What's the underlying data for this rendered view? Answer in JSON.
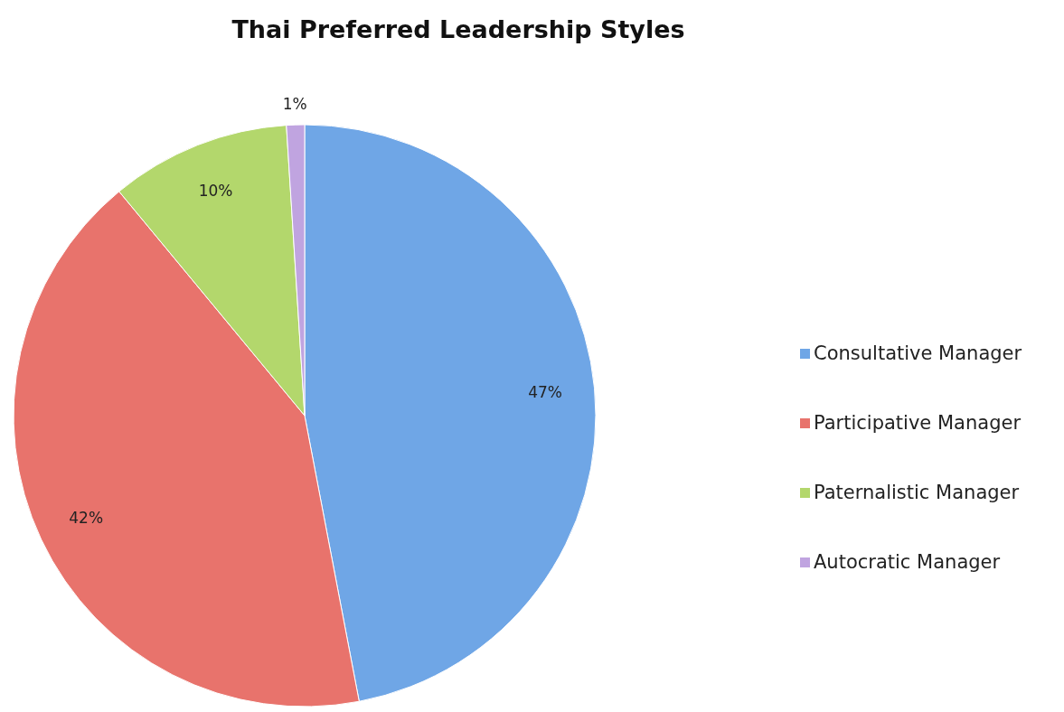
{
  "chart_data": {
    "type": "pie",
    "title": "Thai Preferred Leadership Styles",
    "categories": [
      "Consultative Manager",
      "Participative Manager",
      "Paternalistic Manager",
      "Autocratic Manager"
    ],
    "values": [
      47,
      42,
      10,
      1
    ],
    "colors": [
      "#6fa6e6",
      "#e8736c",
      "#b3d76c",
      "#c0a4e0"
    ],
    "value_labels": [
      "47%",
      "42%",
      "10%",
      "1%"
    ],
    "legend": "right"
  }
}
